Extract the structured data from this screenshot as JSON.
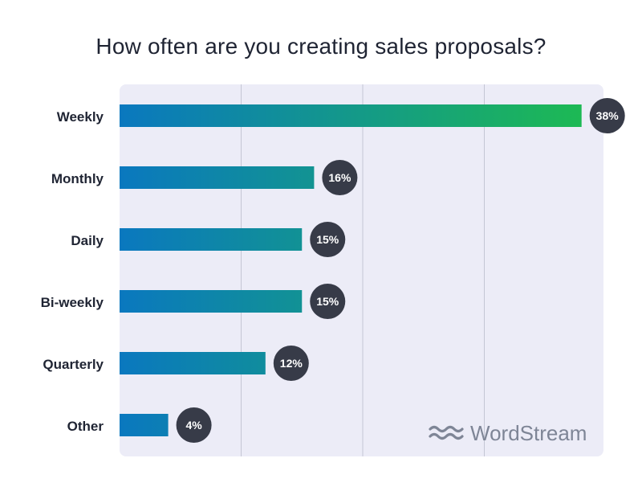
{
  "chart_data": {
    "type": "bar",
    "orientation": "horizontal",
    "title": "How often are you creating sales proposals?",
    "categories": [
      "Weekly",
      "Monthly",
      "Daily",
      "Bi-weekly",
      "Quarterly",
      "Other"
    ],
    "values": [
      38,
      16,
      15,
      15,
      12,
      4
    ],
    "value_labels": [
      "38%",
      "16%",
      "15%",
      "15%",
      "12%",
      "4%"
    ],
    "xlim": [
      0,
      40
    ],
    "gridlines": [
      0,
      10,
      20,
      30,
      40
    ],
    "grid": true,
    "xlabel": "",
    "ylabel": "",
    "colors": {
      "bar_start": "#0a78bf",
      "bar_end": "#1db954",
      "plot_bg": "#ececf7",
      "grid": "#c4c6d4",
      "badge": "#373b48"
    }
  },
  "watermark": {
    "text": "WordStream",
    "icon": "wordstream-waves-icon"
  }
}
